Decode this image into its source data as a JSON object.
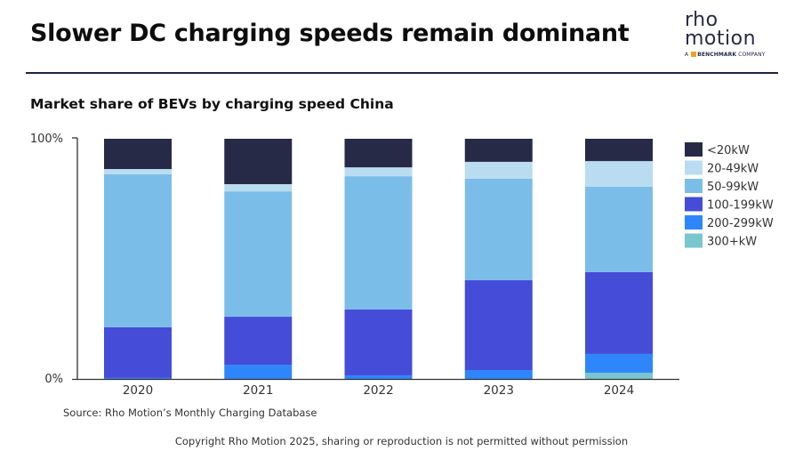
{
  "header": {
    "title": "Slower DC charging speeds remain dominant",
    "logo_line1": "rho",
    "logo_line2": "motion",
    "logo_sub_prefix": "A",
    "logo_sub_brand": "BENCHMARK",
    "logo_sub_suffix": "COMPANY"
  },
  "footer": {
    "source": "Source: Rho Motion’s Monthly Charging Database",
    "copyright": "Copyright Rho Motion 2025, sharing or reproduction is not permitted without permission"
  },
  "chart_data": {
    "type": "bar",
    "stacked": true,
    "title": "Market share of BEVs by charging speed China",
    "xlabel": "",
    "ylabel": "",
    "ylim": [
      0,
      100
    ],
    "y_ticks": [
      "0%",
      "100%"
    ],
    "grid": false,
    "legend_position": "right",
    "categories": [
      "2020",
      "2021",
      "2022",
      "2023",
      "2024"
    ],
    "series": [
      {
        "name": "300+kW",
        "color": "#79c6cf",
        "values": [
          0,
          0,
          0,
          0,
          2.6
        ]
      },
      {
        "name": "200-299kW",
        "color": "#2f86fb",
        "values": [
          0.4,
          5.9,
          1.5,
          3.7,
          7.8
        ]
      },
      {
        "name": "100-199kW",
        "color": "#444cd8",
        "values": [
          21.1,
          20.0,
          27.4,
          37.4,
          34.1
        ]
      },
      {
        "name": "50-99kW",
        "color": "#7bbde9",
        "values": [
          63.7,
          52.2,
          55.5,
          42.3,
          35.6
        ]
      },
      {
        "name": "20-49kW",
        "color": "#badcf1",
        "values": [
          2.2,
          3.0,
          3.7,
          7.0,
          10.6
        ]
      },
      {
        "name": "<20kW",
        "color": "#272a47",
        "values": [
          12.6,
          18.9,
          11.9,
          9.6,
          9.3
        ]
      }
    ],
    "legend_order": [
      "<20kW",
      "20-49kW",
      "50-99kW",
      "100-199kW",
      "200-299kW",
      "300+kW"
    ]
  }
}
